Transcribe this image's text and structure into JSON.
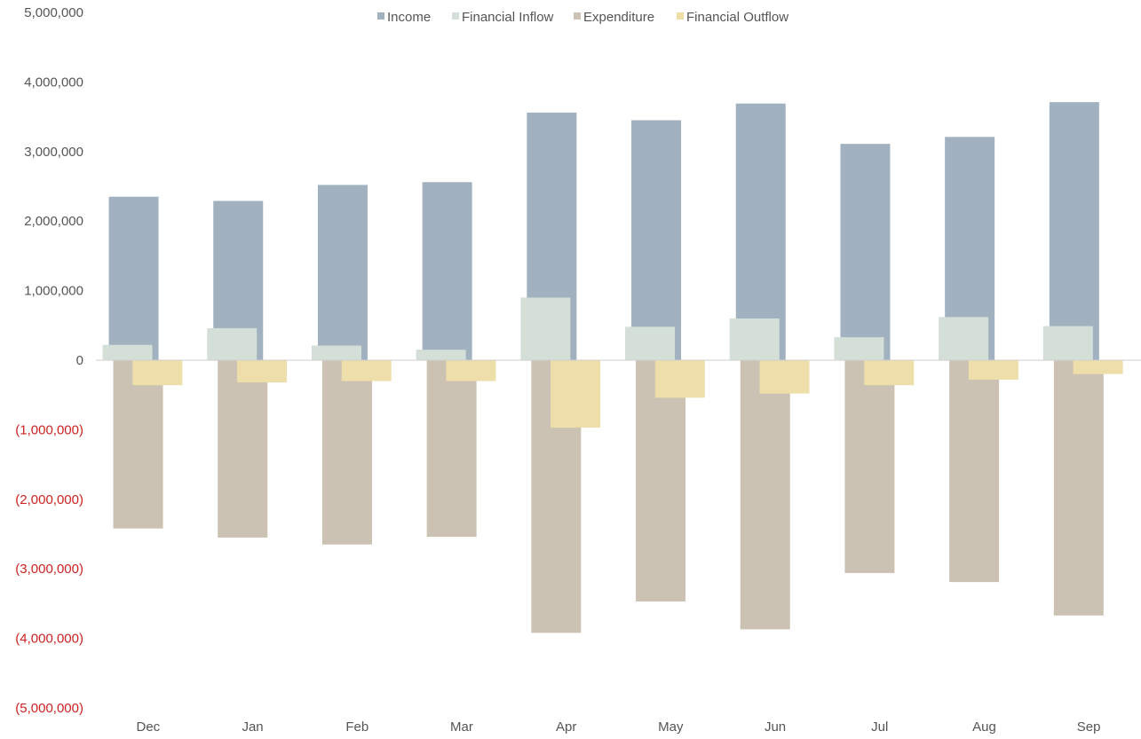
{
  "chart_data": {
    "type": "bar",
    "title": "",
    "xlabel": "",
    "ylabel": "",
    "ylim": [
      -5000000,
      5000000
    ],
    "y_ticks": [
      5000000,
      4000000,
      3000000,
      2000000,
      1000000,
      0,
      -1000000,
      -2000000,
      -3000000,
      -4000000,
      -5000000
    ],
    "y_tick_labels": [
      "5,000,000",
      "4,000,000",
      "3,000,000",
      "2,000,000",
      "1,000,000",
      "0",
      "(1,000,000)",
      "(2,000,000)",
      "(3,000,000)",
      "(4,000,000)",
      "(5,000,000)"
    ],
    "negative_tick_color": "#cc2222",
    "tick_color": "#555555",
    "grid": false,
    "legend_position": "top-center",
    "categories": [
      "Dec",
      "Jan",
      "Feb",
      "Mar",
      "Apr",
      "May",
      "Jun",
      "Jul",
      "Aug",
      "Sep"
    ],
    "series": [
      {
        "name": "Income",
        "color": "#a2b1bf",
        "values": [
          2350000,
          2290000,
          2520000,
          2560000,
          3560000,
          3450000,
          3690000,
          3110000,
          3210000,
          3710000
        ]
      },
      {
        "name": "Financial Inflow",
        "color": "#d3dfd7",
        "values": [
          220000,
          460000,
          210000,
          150000,
          900000,
          480000,
          600000,
          330000,
          620000,
          490000
        ]
      },
      {
        "name": "Expenditure",
        "color": "#cbc2b3",
        "values": [
          -2420000,
          -2550000,
          -2650000,
          -2540000,
          -3920000,
          -3470000,
          -3870000,
          -3060000,
          -3190000,
          -3670000
        ]
      },
      {
        "name": "Financial Outflow",
        "color": "#eedfaa",
        "values": [
          -360000,
          -320000,
          -300000,
          -300000,
          -970000,
          -540000,
          -480000,
          -360000,
          -280000,
          -200000
        ]
      }
    ]
  }
}
